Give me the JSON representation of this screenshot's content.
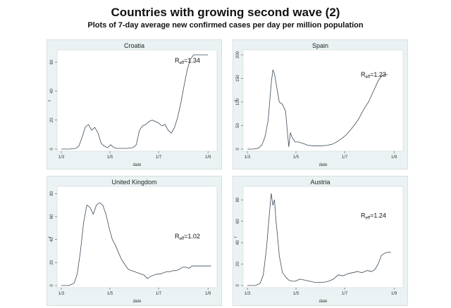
{
  "title": "Countries with growing second wave (2)",
  "subtitle": "Plots of 7-day average new confirmed cases per day per million population",
  "colors": {
    "line": "#3a4a5a",
    "panel_bg": "#eaf2f3",
    "plot_bg": "#ffffff"
  },
  "chart_data": [
    {
      "type": "line",
      "title": "Croatia",
      "xlabel": "date",
      "ylabel": "r",
      "xticks": [
        "1/3",
        "1/5",
        "1/7",
        "1/9"
      ],
      "yticks": [
        0,
        20,
        40,
        60
      ],
      "ylim": [
        0,
        65
      ],
      "annotation": {
        "base": "R",
        "sub": "eff",
        "tail": "=1.34"
      },
      "x": [
        0,
        10,
        18,
        22,
        26,
        30,
        34,
        38,
        42,
        46,
        50,
        54,
        58,
        62,
        66,
        70,
        74,
        78,
        82,
        86,
        90,
        94,
        98,
        102,
        106,
        110,
        114,
        118,
        122,
        126,
        130,
        134,
        138,
        142,
        146,
        150,
        154,
        158,
        162,
        166,
        170,
        174,
        176,
        178,
        180,
        182,
        184
      ],
      "values": [
        0,
        0,
        0.5,
        2,
        8,
        15,
        17,
        13,
        15,
        11,
        4,
        2,
        1,
        3,
        1,
        0.5,
        0.5,
        0.5,
        0.5,
        0.8,
        1,
        3,
        13,
        16,
        17,
        19,
        20,
        19,
        18,
        16,
        17,
        13,
        11,
        15,
        22,
        32,
        44,
        55,
        62,
        65,
        65,
        65,
        65,
        65,
        65,
        65,
        65
      ]
    },
    {
      "type": "line",
      "title": "Spain",
      "xlabel": "date",
      "ylabel": "r",
      "xticks": [
        "1/3",
        "1/5",
        "1/7",
        "1/9"
      ],
      "yticks": [
        0,
        50,
        100,
        150,
        200
      ],
      "ylim": [
        0,
        200
      ],
      "annotation": {
        "base": "R",
        "sub": "eff",
        "tail": "=1.23"
      },
      "x": [
        0,
        8,
        14,
        18,
        22,
        26,
        28,
        30,
        32,
        34,
        36,
        40,
        44,
        48,
        50,
        52,
        54,
        56,
        58,
        60,
        64,
        70,
        76,
        82,
        88,
        94,
        100,
        106,
        112,
        118,
        124,
        130,
        136,
        140,
        144,
        148,
        152,
        156,
        160,
        164,
        168,
        172,
        176
      ],
      "values": [
        0,
        0,
        2,
        8,
        25,
        60,
        100,
        140,
        168,
        160,
        140,
        100,
        95,
        80,
        40,
        5,
        35,
        25,
        20,
        15,
        15,
        12,
        8,
        7,
        7,
        7,
        8,
        10,
        15,
        22,
        30,
        42,
        55,
        65,
        78,
        90,
        100,
        115,
        130,
        145,
        155,
        158,
        158
      ]
    },
    {
      "type": "line",
      "title": "United Kingdom",
      "xlabel": "date",
      "ylabel": "r",
      "xticks": [
        "1/3",
        "1/5",
        "1/7",
        "1/9"
      ],
      "yticks": [
        0,
        20,
        40,
        60,
        80
      ],
      "ylim": [
        0,
        82
      ],
      "annotation": {
        "base": "R",
        "sub": "eff",
        "tail": "=1.02"
      },
      "x": [
        0,
        10,
        16,
        20,
        24,
        28,
        32,
        36,
        40,
        44,
        48,
        52,
        56,
        60,
        64,
        68,
        72,
        76,
        80,
        84,
        88,
        92,
        96,
        100,
        104,
        108,
        112,
        116,
        120,
        124,
        128,
        132,
        136,
        140,
        144,
        148,
        152,
        156,
        160,
        164,
        168,
        172,
        176,
        180,
        184,
        188
      ],
      "values": [
        0,
        0,
        2,
        10,
        30,
        55,
        70,
        68,
        62,
        70,
        72,
        70,
        62,
        50,
        40,
        35,
        28,
        22,
        18,
        14,
        13,
        12,
        11,
        10,
        9,
        6,
        8,
        9,
        10,
        10,
        11,
        12,
        12,
        13,
        13,
        14,
        16,
        16,
        15,
        17,
        17,
        17,
        17,
        17,
        17,
        17
      ]
    },
    {
      "type": "line",
      "title": "Austria",
      "xlabel": "date",
      "ylabel": "r",
      "xticks": [
        "1/3",
        "1/5",
        "1/7",
        "1/9"
      ],
      "yticks": [
        0,
        20,
        40,
        60,
        80
      ],
      "ylim": [
        0,
        88
      ],
      "annotation": {
        "base": "R",
        "sub": "eff",
        "tail": "=1.24"
      },
      "x": [
        0,
        10,
        16,
        20,
        24,
        28,
        30,
        32,
        34,
        36,
        38,
        40,
        44,
        48,
        52,
        56,
        60,
        66,
        72,
        78,
        84,
        90,
        96,
        102,
        108,
        114,
        120,
        126,
        132,
        138,
        144,
        150,
        156,
        160,
        164,
        168,
        172,
        176,
        180
      ],
      "values": [
        0,
        0,
        2,
        10,
        35,
        70,
        86,
        75,
        80,
        60,
        45,
        28,
        12,
        8,
        5,
        4,
        4,
        6,
        5,
        4,
        3,
        3,
        3,
        4,
        6,
        10,
        9,
        11,
        12,
        13,
        12,
        14,
        13,
        15,
        20,
        28,
        30,
        31,
        31
      ]
    }
  ]
}
